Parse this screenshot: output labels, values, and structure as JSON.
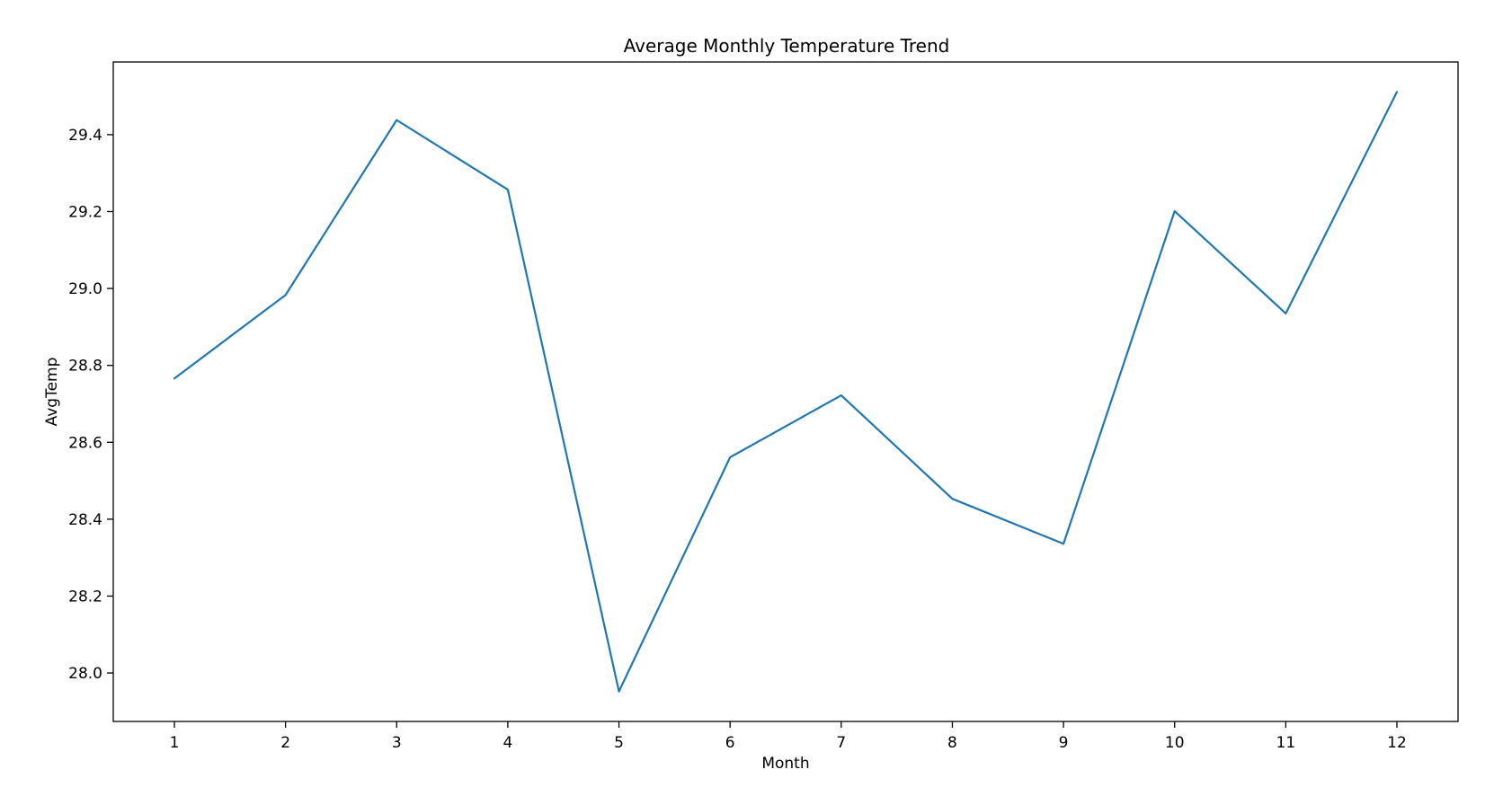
{
  "chart_data": {
    "type": "line",
    "title": "Average Monthly Temperature Trend",
    "xlabel": "Month",
    "ylabel": "AvgTemp",
    "x": [
      1,
      2,
      3,
      4,
      5,
      6,
      7,
      8,
      9,
      10,
      11,
      12
    ],
    "x_tick_labels": [
      "1",
      "2",
      "3",
      "4",
      "5",
      "6",
      "7",
      "8",
      "9",
      "10",
      "11",
      "12"
    ],
    "y_tick_values": [
      28.0,
      28.2,
      28.4,
      28.6,
      28.8,
      29.0,
      29.2,
      29.4
    ],
    "y_tick_labels": [
      "28.0",
      "28.2",
      "28.4",
      "28.6",
      "28.8",
      "29.0",
      "29.2",
      "29.4"
    ],
    "series": [
      {
        "values": [
          28.766,
          28.983,
          29.438,
          29.257,
          27.952,
          28.561,
          28.722,
          28.453,
          28.336,
          29.201,
          28.935,
          29.511
        ]
      }
    ],
    "xlim": [
      0.45,
      12.55
    ],
    "ylim": [
      27.874,
      29.589
    ],
    "grid": false,
    "legend": "none",
    "line_color": "#1f77b4"
  }
}
